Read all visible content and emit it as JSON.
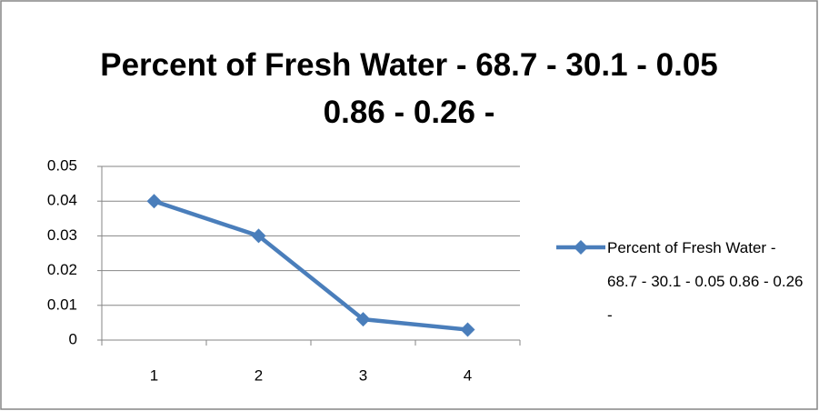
{
  "chart_data": {
    "type": "line",
    "title": "Percent of Fresh Water - 68.7 - 30.1 - 0.05 0.86 - 0.26 -",
    "categories": [
      "1",
      "2",
      "3",
      "4"
    ],
    "series": [
      {
        "name": "Percent of Fresh Water - 68.7 - 30.1 - 0.05 0.86 - 0.26 -",
        "color": "#4a7ebb",
        "values": [
          0.04,
          0.03,
          0.006,
          0.003
        ]
      }
    ],
    "ylim": [
      0,
      0.05
    ],
    "yticks": [
      0,
      0.01,
      0.02,
      0.03,
      0.04,
      0.05
    ],
    "grid": true,
    "legend": "right"
  }
}
